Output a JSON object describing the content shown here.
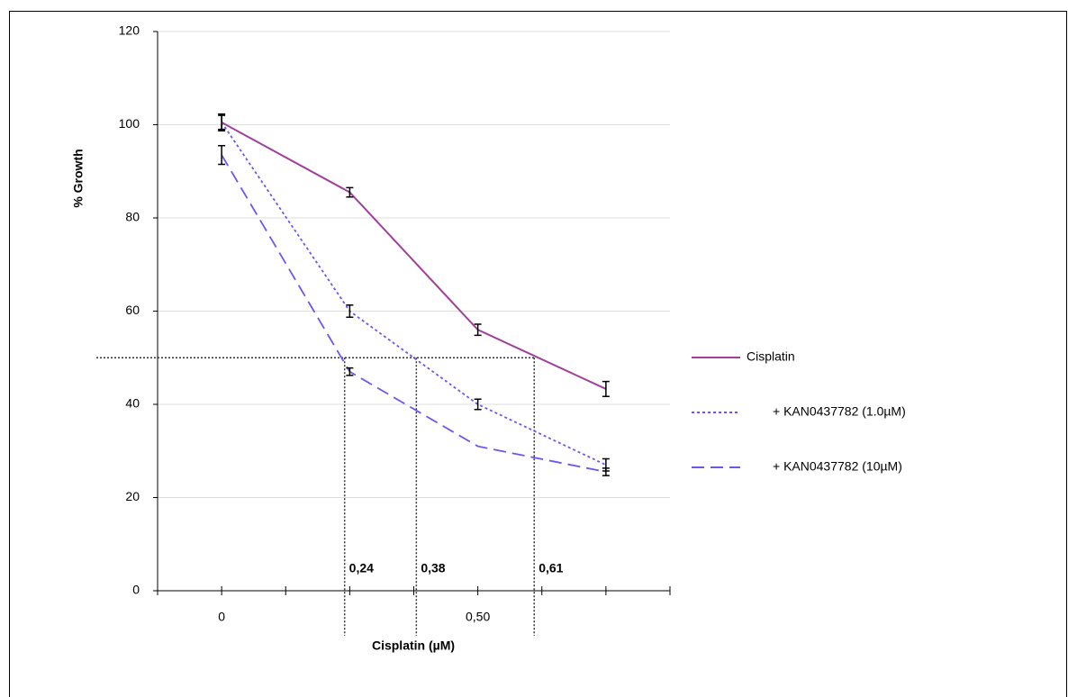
{
  "chart_data": {
    "type": "line",
    "x_label": "Cisplatin (µM)",
    "y_label": "% Growth",
    "x": [
      0,
      0.25,
      0.5,
      0.75
    ],
    "series": [
      {
        "name": "Cisplatin",
        "color": "#a0409c",
        "style": "solid",
        "values": [
          100.5,
          85.5,
          56,
          43.3
        ],
        "errors": [
          1.5,
          1,
          1.2,
          1.6
        ]
      },
      {
        "name": "+ KAN0437782 (1.0µM)",
        "color": "#6a58f0",
        "style": "dotted",
        "values": [
          100.5,
          60,
          40,
          27
        ],
        "errors": [
          1.8,
          1.3,
          1.1,
          1.3
        ]
      },
      {
        "name": "+ KAN0437782 (10µM)",
        "color": "#6a58f0",
        "style": "dashed",
        "values": [
          93.5,
          47,
          31,
          25.5
        ],
        "errors": [
          2,
          0.8,
          null,
          0.8
        ]
      }
    ],
    "xlim": [
      -0.125,
      0.875
    ],
    "xticks": [
      {
        "value": -0.125,
        "label": null
      },
      0,
      {
        "value": 0.125,
        "label": null
      },
      {
        "value": 0.25,
        "label": null
      },
      {
        "value": 0.375,
        "label": null
      },
      {
        "value": 0.5,
        "label": "0,50"
      },
      {
        "value": 0.625,
        "label": null
      },
      {
        "value": 0.75,
        "label": null
      },
      {
        "value": 0.875,
        "label": null
      }
    ],
    "ylim": [
      0,
      120
    ],
    "yticks": [
      0,
      20,
      40,
      60,
      80,
      100,
      120
    ],
    "grid": true,
    "threshold": 50,
    "annotations": [
      {
        "x": 0.24,
        "label": "0,24",
        "color": "#2b2bf0"
      },
      {
        "x": 0.38,
        "label": "0,38",
        "color": "#2b2bf0"
      },
      {
        "x": 0.61,
        "label": "0,61",
        "color": "#8b1a1a"
      }
    ],
    "legend": "right"
  }
}
